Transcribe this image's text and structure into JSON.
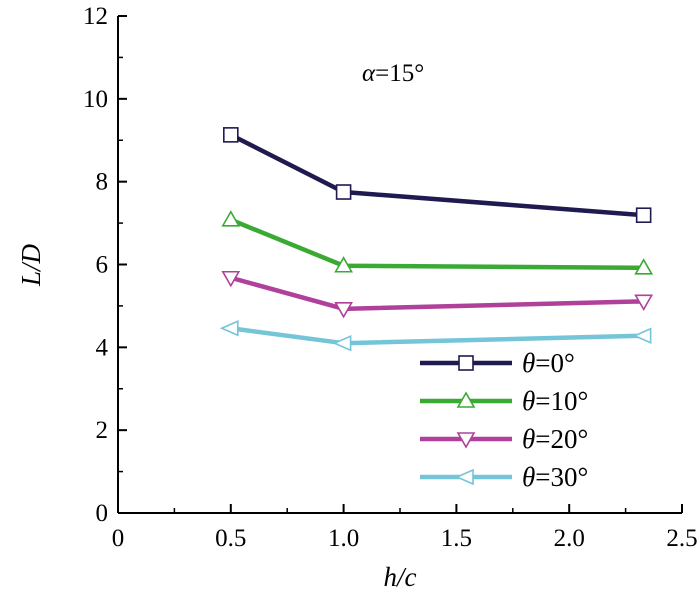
{
  "chart_data": {
    "type": "line",
    "xlabel": "h/c",
    "ylabel": "L/D",
    "xlim": [
      0,
      2.5
    ],
    "ylim": [
      0,
      12
    ],
    "xticks": [
      "0",
      "0.5",
      "1.0",
      "1.5",
      "2.0",
      "2.5"
    ],
    "xtick_values": [
      0,
      0.5,
      1.0,
      1.5,
      2.0,
      2.5
    ],
    "yticks": [
      "0",
      "2",
      "4",
      "6",
      "8",
      "10",
      "12"
    ],
    "ytick_values": [
      0,
      2,
      4,
      6,
      8,
      10,
      12
    ],
    "grid": false,
    "legend_position": "bottom-right",
    "annotation": "α=15°",
    "x": [
      0.5,
      1.0,
      2.33
    ],
    "series": [
      {
        "name": "θ=0°",
        "values": [
          9.13,
          7.75,
          7.19
        ],
        "color": "#1f1a4f",
        "marker": "square"
      },
      {
        "name": "θ=10°",
        "values": [
          7.08,
          5.97,
          5.92
        ],
        "color": "#3aaa35",
        "marker": "triangle-up"
      },
      {
        "name": "θ=20°",
        "values": [
          5.68,
          4.93,
          5.11
        ],
        "color": "#b0419a",
        "marker": "triangle-down"
      },
      {
        "name": "θ=30°",
        "values": [
          4.46,
          4.1,
          4.28
        ],
        "color": "#74c5d8",
        "marker": "triangle-left"
      }
    ]
  }
}
